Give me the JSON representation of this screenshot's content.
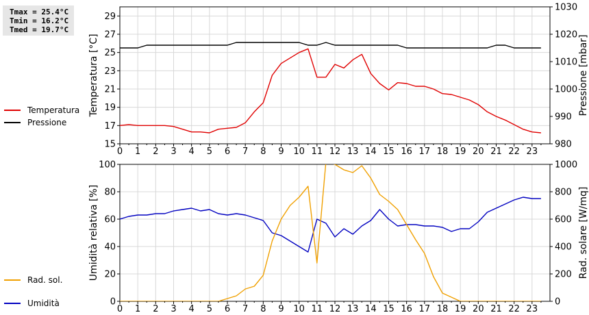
{
  "stats": {
    "tmax": "Tmax = 25.4°C",
    "tmin": "Tmin = 16.2°C",
    "tmed": "Tmed = 19.7°C"
  },
  "legend_top": [
    {
      "label": "Temperatura",
      "color": "#e00000"
    },
    {
      "label": "Pressione",
      "color": "#000000"
    }
  ],
  "legend_bottom": [
    {
      "label": "Umidità",
      "color": "#0000c0"
    },
    {
      "label": "Rad. sol.",
      "color": "#f0a000"
    }
  ],
  "chart_data": [
    {
      "type": "line",
      "xlim": [
        0,
        24
      ],
      "x_ticks": [
        "0",
        "1",
        "2",
        "3",
        "4",
        "5",
        "6",
        "7",
        "8",
        "9",
        "10",
        "11",
        "12",
        "13",
        "14",
        "15",
        "16",
        "17",
        "18",
        "19",
        "20",
        "21",
        "22",
        "23"
      ],
      "ylabel": "Temperatura [°C]",
      "ylim": [
        15,
        30
      ],
      "y_ticks": [
        "15",
        "17",
        "19",
        "21",
        "23",
        "25",
        "27",
        "29"
      ],
      "y2label": "Pressione [mbar]",
      "y2lim": [
        980,
        1030
      ],
      "y2_ticks": [
        "980",
        "990",
        "1000",
        "1010",
        "1020",
        "1030"
      ],
      "grid": true,
      "series": [
        {
          "name": "Temperatura",
          "axis": "left",
          "color": "#e00000",
          "x": [
            0,
            0.5,
            1,
            1.5,
            2,
            2.5,
            3,
            3.5,
            4,
            4.5,
            5,
            5.5,
            6,
            6.5,
            7,
            7.5,
            8,
            8.5,
            9,
            9.5,
            10,
            10.5,
            11,
            11.5,
            12,
            12.5,
            13,
            13.5,
            14,
            14.5,
            15,
            15.5,
            16,
            16.5,
            17,
            17.5,
            18,
            18.5,
            19,
            19.5,
            20,
            20.5,
            21,
            21.5,
            22,
            22.5,
            23,
            23.5
          ],
          "y": [
            17.0,
            17.1,
            17.0,
            17.0,
            17.0,
            17.0,
            16.9,
            16.6,
            16.3,
            16.3,
            16.2,
            16.6,
            16.7,
            16.8,
            17.3,
            18.5,
            19.5,
            22.5,
            23.8,
            24.4,
            25.0,
            25.4,
            22.3,
            22.3,
            23.7,
            23.3,
            24.2,
            24.8,
            22.7,
            21.6,
            20.9,
            21.7,
            21.6,
            21.3,
            21.3,
            21.0,
            20.5,
            20.4,
            20.1,
            19.8,
            19.3,
            18.5,
            18.0,
            17.6,
            17.1,
            16.6,
            16.3,
            16.2
          ]
        },
        {
          "name": "Pressione",
          "axis": "right",
          "color": "#000000",
          "x": [
            0,
            0.5,
            1,
            1.5,
            2,
            2.5,
            3,
            3.5,
            4,
            4.5,
            5,
            5.5,
            6,
            6.5,
            7,
            7.5,
            8,
            8.5,
            9,
            9.5,
            10,
            10.5,
            11,
            11.5,
            12,
            12.5,
            13,
            13.5,
            14,
            14.5,
            15,
            15.5,
            16,
            16.5,
            17,
            17.5,
            18,
            18.5,
            19,
            19.5,
            20,
            20.5,
            21,
            21.5,
            22,
            22.5,
            23,
            23.5
          ],
          "y": [
            1015,
            1015,
            1015,
            1016,
            1016,
            1016,
            1016,
            1016,
            1016,
            1016,
            1016,
            1016,
            1016,
            1017,
            1017,
            1017,
            1017,
            1017,
            1017,
            1017,
            1017,
            1016,
            1016,
            1017,
            1016,
            1016,
            1016,
            1016,
            1016,
            1016,
            1016,
            1016,
            1015,
            1015,
            1015,
            1015,
            1015,
            1015,
            1015,
            1015,
            1015,
            1015,
            1016,
            1016,
            1015,
            1015,
            1015,
            1015
          ]
        }
      ]
    },
    {
      "type": "line",
      "xlim": [
        0,
        24
      ],
      "x_ticks": [
        "0",
        "1",
        "2",
        "3",
        "4",
        "5",
        "6",
        "7",
        "8",
        "9",
        "10",
        "11",
        "12",
        "13",
        "14",
        "15",
        "16",
        "17",
        "18",
        "19",
        "20",
        "21",
        "22",
        "23"
      ],
      "ylabel": "Umidità relativa [%]",
      "ylim": [
        0,
        100
      ],
      "y_ticks": [
        "0",
        "20",
        "40",
        "60",
        "80",
        "100"
      ],
      "y2label": "Rad. solare [W/mq]",
      "y2lim": [
        0,
        1000
      ],
      "y2_ticks": [
        "0",
        "200",
        "400",
        "600",
        "800",
        "1000"
      ],
      "grid": true,
      "series": [
        {
          "name": "Umidità",
          "axis": "left",
          "color": "#0000c0",
          "x": [
            0,
            0.5,
            1,
            1.5,
            2,
            2.5,
            3,
            3.5,
            4,
            4.5,
            5,
            5.5,
            6,
            6.5,
            7,
            7.5,
            8,
            8.5,
            9,
            9.5,
            10,
            10.5,
            11,
            11.5,
            12,
            12.5,
            13,
            13.5,
            14,
            14.5,
            15,
            15.5,
            16,
            16.5,
            17,
            17.5,
            18,
            18.5,
            19,
            19.5,
            20,
            20.5,
            21,
            21.5,
            22,
            22.5,
            23,
            23.5
          ],
          "y": [
            60,
            62,
            63,
            63,
            64,
            64,
            66,
            67,
            68,
            66,
            67,
            64,
            63,
            64,
            63,
            61,
            59,
            50,
            48,
            44,
            40,
            36,
            60,
            57,
            47,
            53,
            49,
            55,
            59,
            67,
            60,
            55,
            56,
            56,
            55,
            55,
            54,
            51,
            53,
            53,
            58,
            65,
            68,
            71,
            74,
            76,
            75,
            75
          ]
        },
        {
          "name": "Rad. sol.",
          "axis": "right",
          "color": "#f0a000",
          "x": [
            0,
            0.5,
            1,
            1.5,
            2,
            2.5,
            3,
            3.5,
            4,
            4.5,
            5,
            5.5,
            6,
            6.5,
            7,
            7.5,
            8,
            8.5,
            9,
            9.5,
            10,
            10.5,
            11,
            11.5,
            12,
            12.5,
            13,
            13.5,
            14,
            14.5,
            15,
            15.5,
            16,
            16.5,
            17,
            17.5,
            18,
            18.5,
            19,
            19.5,
            20,
            20.5,
            21,
            21.5,
            22,
            22.5,
            23,
            23.5
          ],
          "y": [
            0,
            0,
            0,
            0,
            0,
            0,
            0,
            0,
            0,
            0,
            0,
            0,
            20,
            40,
            90,
            110,
            190,
            440,
            600,
            700,
            760,
            840,
            280,
            1020,
            1000,
            960,
            940,
            990,
            900,
            780,
            730,
            670,
            560,
            450,
            350,
            180,
            60,
            30,
            0,
            0,
            0,
            0,
            0,
            0,
            0,
            0,
            0,
            0
          ]
        }
      ]
    }
  ]
}
